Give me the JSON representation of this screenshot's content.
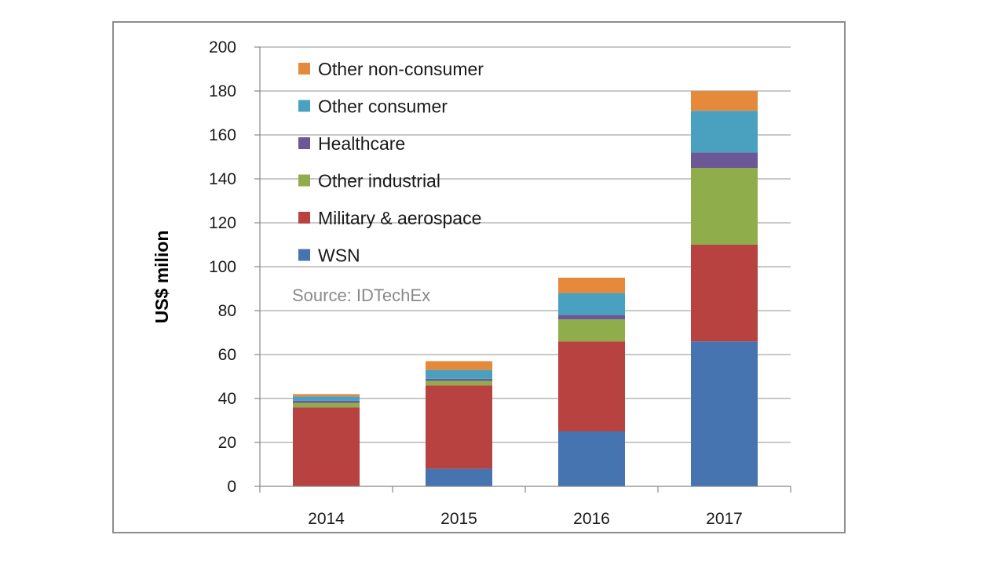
{
  "chart_data": {
    "type": "bar",
    "stacked": true,
    "categories": [
      "2014",
      "2015",
      "2016",
      "2017"
    ],
    "ylabel": "US$ milion",
    "xlabel": "",
    "ylim": [
      0,
      200
    ],
    "yticks": [
      0,
      20,
      40,
      60,
      80,
      100,
      120,
      140,
      160,
      180,
      200
    ],
    "grid": "horizontal",
    "legend_placement": "top-left",
    "annotation": "Source: IDTechEx",
    "series": [
      {
        "name": "WSN",
        "color": "#4674b0",
        "values": [
          0,
          8,
          25,
          66
        ]
      },
      {
        "name": "Military & aerospace",
        "color": "#b84240",
        "values": [
          36,
          38,
          41,
          44
        ]
      },
      {
        "name": "Other industrial",
        "color": "#90ad4c",
        "values": [
          2,
          2,
          10,
          35
        ]
      },
      {
        "name": "Healthcare",
        "color": "#6c5896",
        "values": [
          1,
          1,
          2,
          7
        ]
      },
      {
        "name": "Other consumer",
        "color": "#4aa0bf",
        "values": [
          2,
          4,
          10,
          19
        ]
      },
      {
        "name": "Other non-consumer",
        "color": "#e58a3a",
        "values": [
          1,
          4,
          7,
          9
        ]
      }
    ]
  }
}
